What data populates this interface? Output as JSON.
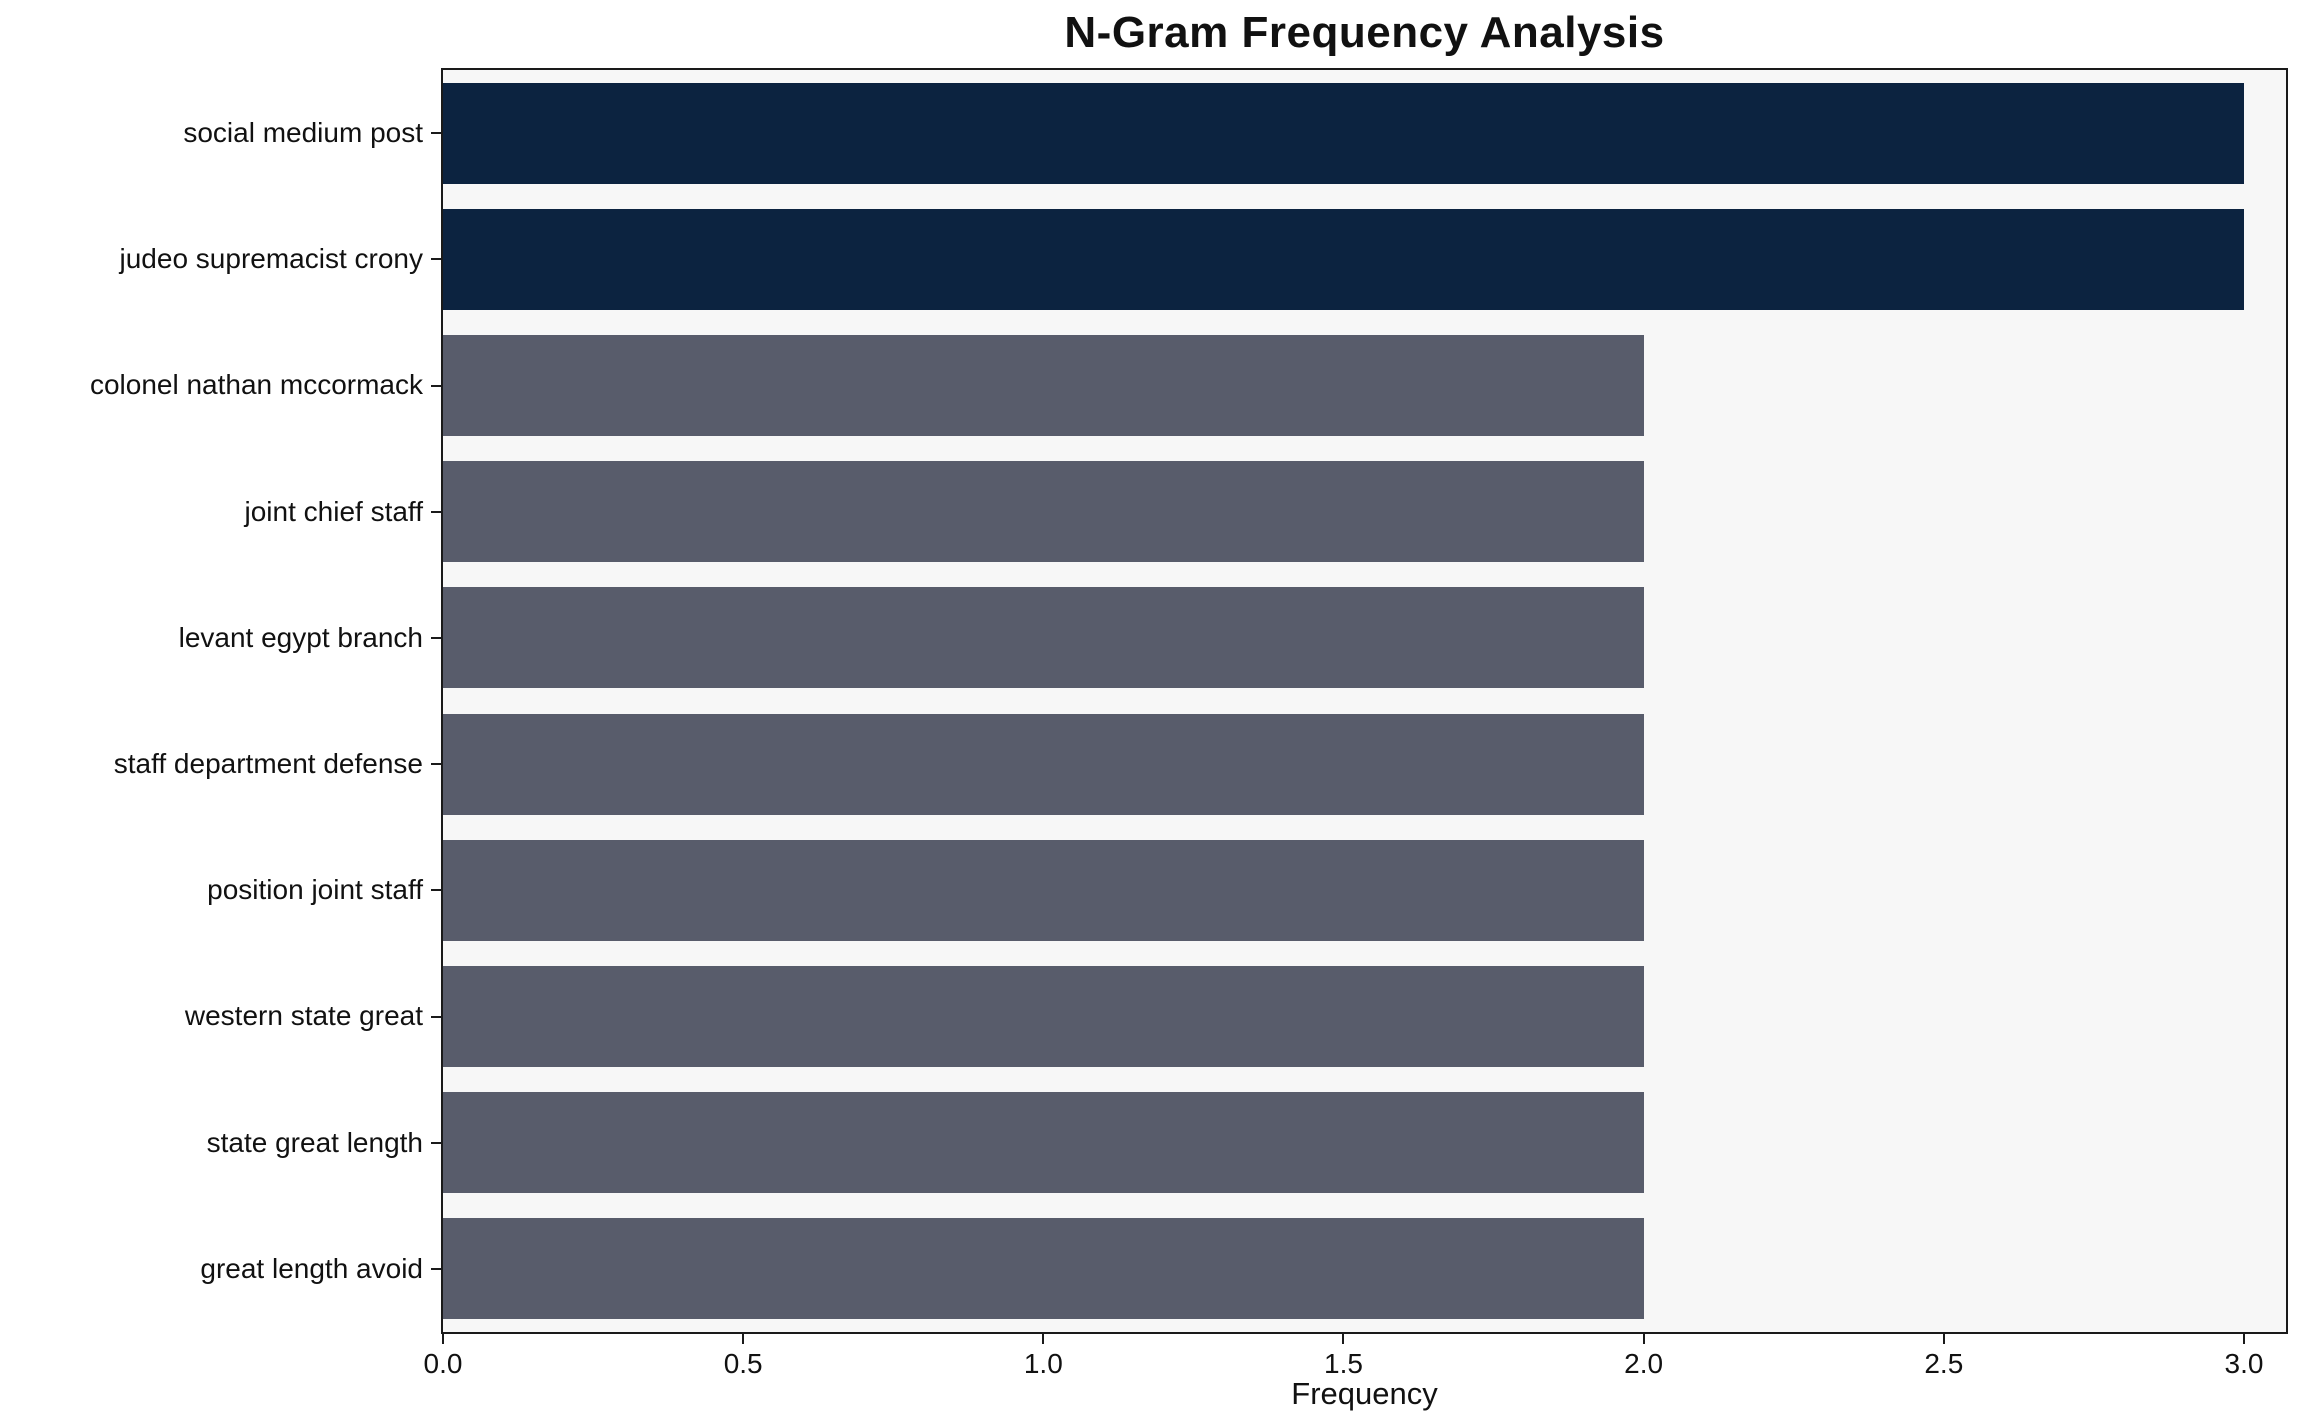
{
  "chart_data": {
    "type": "bar",
    "orientation": "horizontal",
    "title": "N-Gram Frequency Analysis",
    "xlabel": "Frequency",
    "ylabel": "",
    "categories": [
      "social medium post",
      "judeo supremacist crony",
      "colonel nathan mccormack",
      "joint chief staff",
      "levant egypt branch",
      "staff department defense",
      "position joint staff",
      "western state great",
      "state great length",
      "great length avoid"
    ],
    "values": [
      3,
      3,
      2,
      2,
      2,
      2,
      2,
      2,
      2,
      2
    ],
    "bar_colors": [
      "#0c2340",
      "#0c2340",
      "#585c6b",
      "#585c6b",
      "#585c6b",
      "#585c6b",
      "#585c6b",
      "#585c6b",
      "#585c6b",
      "#585c6b"
    ],
    "xlim": [
      0,
      3.07
    ],
    "xticks": [
      0,
      0.5,
      1,
      1.5,
      2,
      2.5,
      3
    ],
    "xtick_labels": [
      "0.0",
      "0.5",
      "1.0",
      "1.5",
      "2.0",
      "2.5",
      "3.0"
    ],
    "grid": false,
    "legend": null,
    "colors": {
      "highlight_bar": "#0c2340",
      "default_bar": "#585c6b",
      "plot_background": "#f7f7f7",
      "figure_background": "#ffffff",
      "axis_line": "#1a1a1a",
      "text": "#111111"
    }
  }
}
